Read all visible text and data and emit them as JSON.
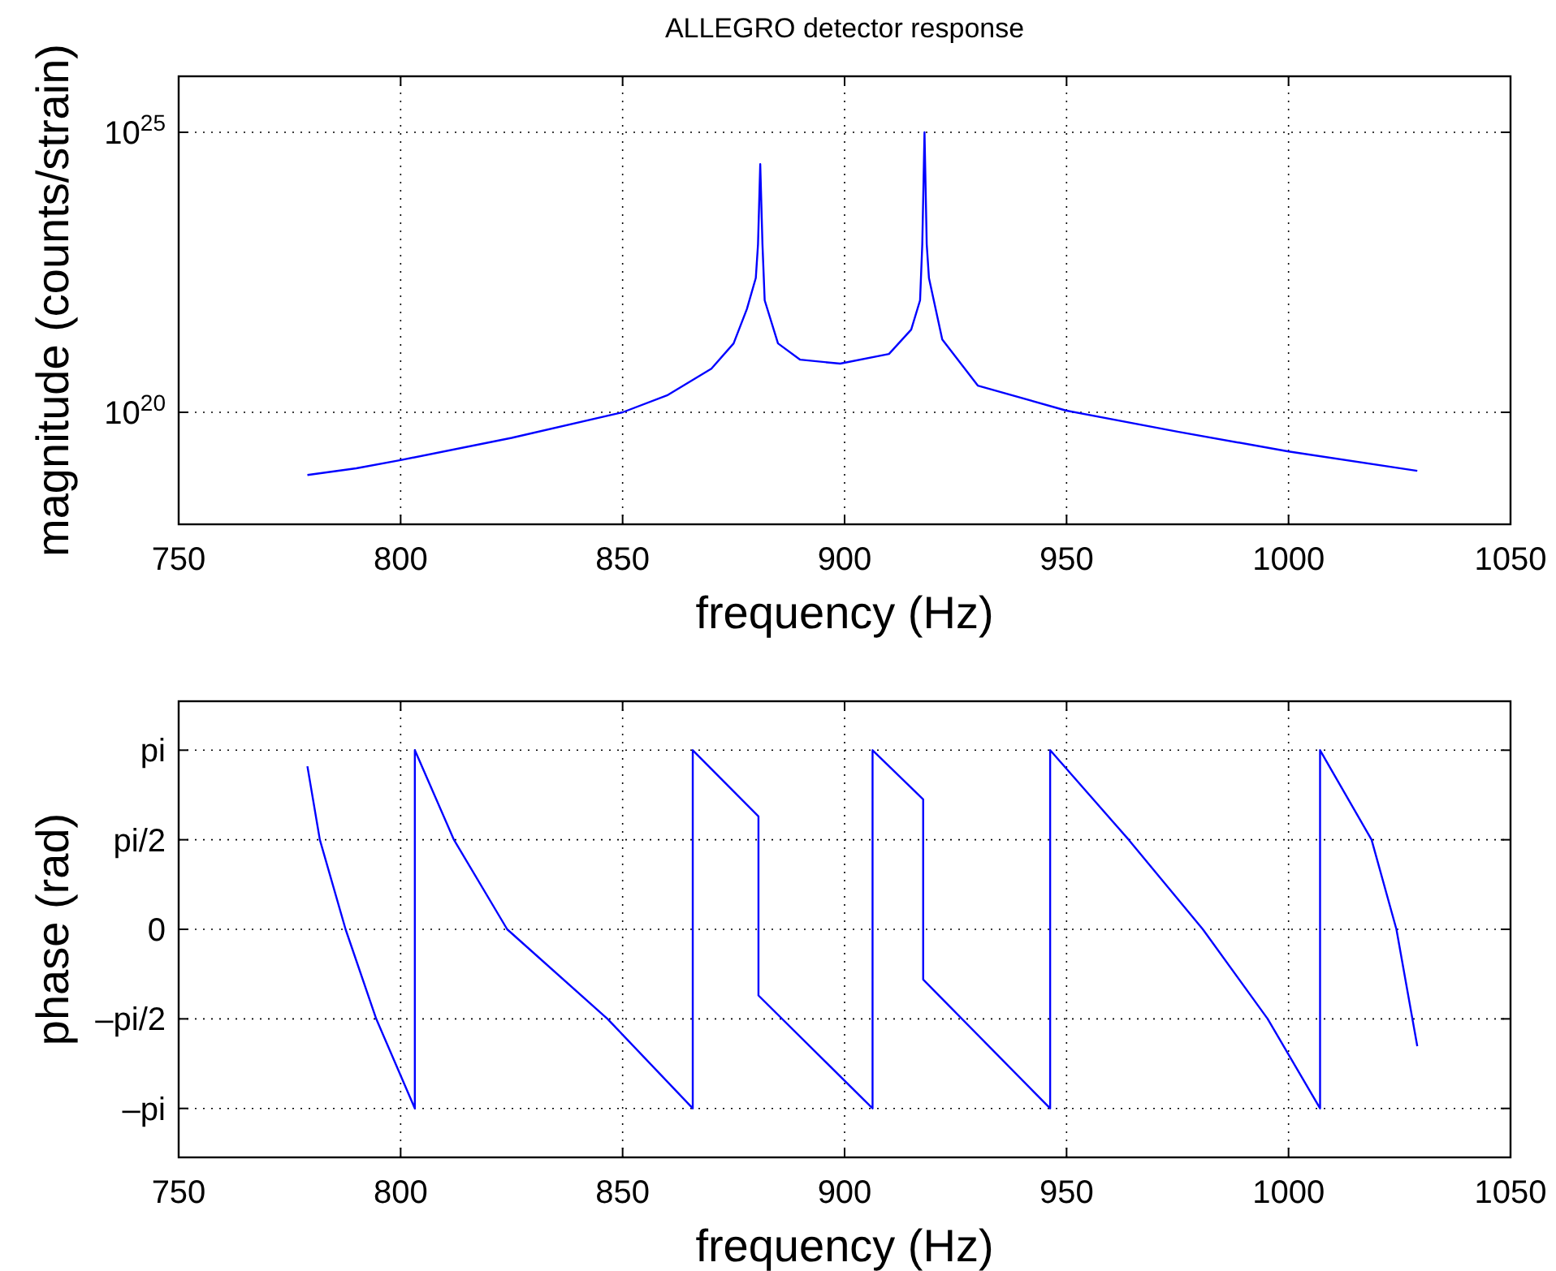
{
  "chart_data": [
    {
      "type": "line",
      "title": "ALLEGRO detector response",
      "xlabel": "frequency (Hz)",
      "ylabel": "magnitude (counts/strain)",
      "log": "y",
      "grid": true,
      "xlim": [
        750,
        1050
      ],
      "xticks": [
        750,
        800,
        850,
        900,
        950,
        1000,
        1050
      ],
      "ylim": [
        1e+18,
        1e+26
      ],
      "yticks": [
        {
          "value": 1e+20,
          "label": "10$^{20}$"
        },
        {
          "value": 1e+25,
          "label": "10$^{25}$"
        }
      ],
      "series": [
        {
          "color": "#0000ff",
          "x": [
            779,
            790,
            800,
            825,
            850,
            860,
            870,
            875,
            878,
            880,
            880.5,
            881,
            881.5,
            882,
            885,
            890,
            899,
            910,
            915,
            917,
            917.5,
            918,
            918.5,
            919,
            922,
            930,
            950,
            975,
            1000,
            1029
          ],
          "values": [
            7.6e+18,
            1e+19,
            1.4e+19,
            3.5e+19,
            1e+20,
            2e+20,
            6e+20,
            1.7e+21,
            7e+21,
            2.5e+22,
            1e+23,
            2.7e+24,
            1e+23,
            1e+22,
            1.7e+21,
            8.7e+20,
            7.4e+20,
            1.1e+21,
            3e+21,
            1e+22,
            1e+23,
            1e+25,
            1e+23,
            2.5e+22,
            2e+21,
            3e+20,
            1.07e+20,
            4.5e+19,
            2e+19,
            9e+18
          ]
        }
      ]
    },
    {
      "type": "line",
      "xlabel": "frequency (Hz)",
      "ylabel": "phase (rad)",
      "grid": true,
      "xlim": [
        750,
        1050
      ],
      "xticks": [
        750,
        800,
        850,
        900,
        950,
        1000,
        1050
      ],
      "ylim": [
        -4,
        4
      ],
      "yticks": [
        {
          "value": -3.1416,
          "label": "–pi"
        },
        {
          "value": -1.5708,
          "label": "–pi/2"
        },
        0,
        {
          "value": 1.5708,
          "label": "pi/2"
        },
        {
          "value": 3.1416,
          "label": "pi"
        }
      ],
      "series": [
        {
          "color": "#0000ff",
          "x": [
            779,
            781.8,
            787.6,
            794.5,
            803.2,
            803.2,
            812,
            824,
            846.6,
            865.8,
            865.8,
            880.6,
            880.6,
            906.3,
            906.3,
            917.7,
            917.7,
            946.3,
            946.3,
            964,
            980.7,
            995.3,
            1007.1,
            1007.1,
            1018.7,
            1024.3,
            1029
          ],
          "values": [
            2.86,
            1.5708,
            0,
            -1.5708,
            -3.1416,
            3.1416,
            1.5708,
            0,
            -1.5708,
            -3.1416,
            3.1416,
            1.98,
            -1.16,
            -3.1416,
            3.1416,
            2.28,
            -0.88,
            -3.1416,
            3.1416,
            1.5708,
            0,
            -1.5708,
            -3.1416,
            3.1416,
            1.5708,
            0,
            -2.05
          ]
        }
      ]
    }
  ]
}
